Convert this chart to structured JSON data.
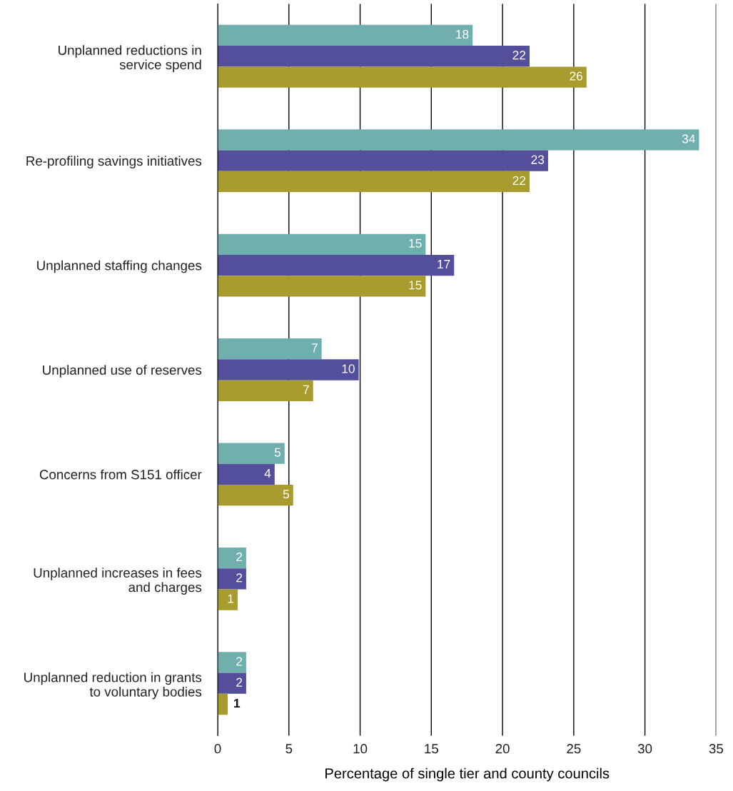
{
  "chart_data": {
    "type": "bar",
    "orientation": "horizontal",
    "xlabel": "Percentage of single tier and county councils",
    "categories": [
      "Unplanned reductions in\nservice spend",
      "Re-profiling savings initiatives",
      "Unplanned staffing changes",
      "Unplanned use of reserves",
      "Concerns from S151 officer",
      "Unplanned increases in fees\nand charges",
      "Unplanned reduction in grants\nto voluntary bodies"
    ],
    "series": [
      {
        "color": "#6fb0ae",
        "values": [
          17.9,
          33.8,
          14.6,
          7.3,
          4.7,
          2.0,
          2.0
        ],
        "value_labels": [
          "18",
          "34",
          "15",
          "7",
          "5",
          "2",
          "2"
        ]
      },
      {
        "color": "#544f9a",
        "values": [
          21.9,
          23.2,
          16.6,
          9.9,
          4.0,
          2.0,
          2.0
        ],
        "value_labels": [
          "22",
          "23",
          "17",
          "10",
          "4",
          "2",
          "2"
        ]
      },
      {
        "color": "#a89c2e",
        "values": [
          25.9,
          21.9,
          14.6,
          6.7,
          5.3,
          1.4,
          0.7
        ],
        "value_labels": [
          "26",
          "22",
          "15",
          "7",
          "5",
          "1",
          "1"
        ]
      }
    ],
    "xlim": [
      0,
      35
    ],
    "xticks": [
      0,
      5,
      10,
      15,
      20,
      25,
      30,
      35
    ],
    "grid": "x"
  }
}
